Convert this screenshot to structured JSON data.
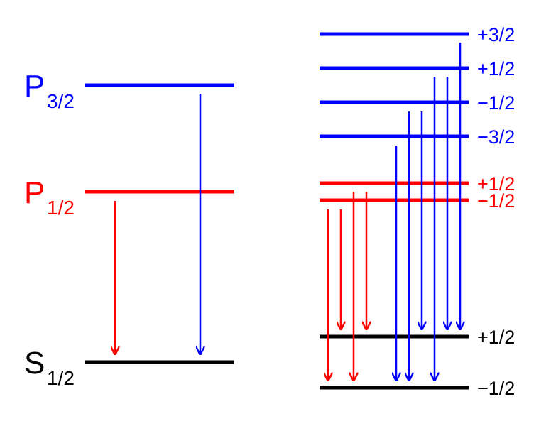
{
  "left_levels": [
    {
      "symbol": "P",
      "subscript": "3/2"
    },
    {
      "symbol": "P",
      "subscript": "1/2"
    },
    {
      "symbol": "S",
      "subscript": "1/2"
    }
  ],
  "right_levels": [
    {
      "label": "+3/2"
    },
    {
      "label": "+1/2"
    },
    {
      "label": "−1/2"
    },
    {
      "label": "−3/2"
    },
    {
      "label": "+1/2"
    },
    {
      "label": "−1/2"
    },
    {
      "label": "+1/2"
    },
    {
      "label": "−1/2"
    }
  ]
}
